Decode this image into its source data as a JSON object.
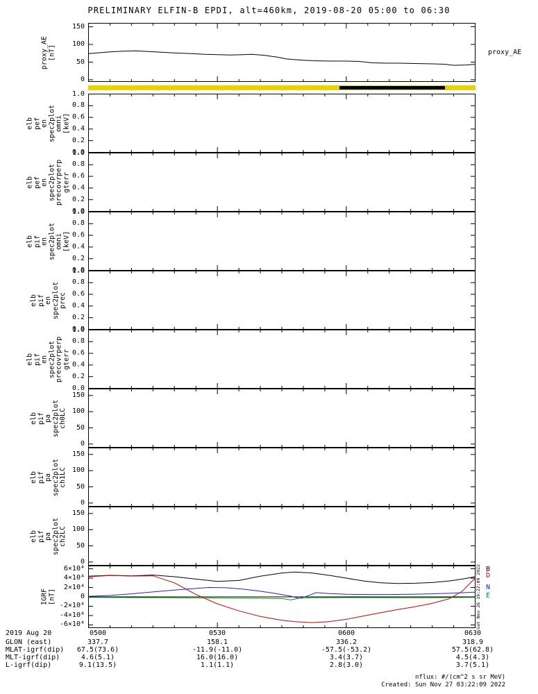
{
  "title": "PRELIMINARY ELFIN-B EPDI, alt=460km, 2019-08-20 05:00 to 06:30",
  "side_timestamp": "Sat Nov 26 19:22:09 2022",
  "colors": {
    "frame": "#000000",
    "strip_yellow": "#e8d300",
    "strip_black": "#000000",
    "line_black": "#000000",
    "line_red": "#cc0000",
    "line_blue": "#2222cc",
    "line_green": "#009900"
  },
  "x_axis": {
    "xlim_minutes": [
      0,
      90
    ],
    "major_ticks_minutes": [
      0,
      30,
      60,
      90
    ],
    "minor_step_minutes": 5,
    "labels": [
      "0500",
      "0530",
      "0600",
      "0630"
    ]
  },
  "bottom": {
    "date_label": "2019 Aug 20",
    "rows": [
      {
        "label": "GLON (east)",
        "values": [
          "337.7",
          "158.1",
          "336.2",
          "318.9"
        ]
      },
      {
        "label": "MLAT-igrf(dip)",
        "values": [
          "67.5(73.6)",
          "-11.9(-11.0)",
          "-57.5(-53.2)",
          "57.5(62.8)"
        ]
      },
      {
        "label": "MLT-igrf(dip)",
        "values": [
          "4.6(5.1)",
          "16.0(16.0)",
          "3.4(3.7)",
          "4.5(4.3)"
        ]
      },
      {
        "label": "L-igrf(dip)",
        "values": [
          "9.1(13.5)",
          "1.1(1.1)",
          "2.8(3.0)",
          "3.7(5.1)"
        ]
      }
    ],
    "nflux_note": "nflux: #/(cm^2 s sr MeV)",
    "created_note": "Created: Sun Nov 27 03:22:09 2022"
  },
  "chart_data": [
    {
      "id": "proxy-ae",
      "type": "line",
      "left_label": [
        "proxy_AE",
        "[nT]"
      ],
      "right_label": "proxy_AE",
      "ylim": [
        -5,
        160
      ],
      "yticks": [
        0,
        50,
        100,
        150
      ],
      "ytick_labels": [
        "0",
        "50",
        "100",
        "150"
      ],
      "series": [
        {
          "name": "proxy_AE",
          "color": "#000000",
          "x": [
            0,
            2,
            5,
            8,
            11,
            14,
            17,
            20,
            24,
            27,
            30,
            33,
            36,
            38,
            41,
            44,
            46,
            49,
            52,
            56,
            60,
            63,
            66,
            69,
            72,
            76,
            80,
            83,
            85,
            88,
            90
          ],
          "y": [
            74,
            76,
            79,
            81,
            82,
            80,
            78,
            76,
            74,
            72,
            71,
            70,
            71,
            72,
            69,
            64,
            59,
            56,
            54,
            53,
            53,
            52,
            48,
            47,
            47,
            46,
            45,
            44,
            41,
            42,
            44
          ]
        }
      ]
    },
    {
      "id": "mode-strip",
      "type": "strip",
      "base_color": "#e8d300",
      "segments": [
        {
          "from": 0.0,
          "to": 0.649,
          "color": "#e8d300"
        },
        {
          "from": 0.649,
          "to": 0.921,
          "color": "#000000"
        },
        {
          "from": 0.921,
          "to": 1.0,
          "color": "#e8d300"
        }
      ]
    },
    {
      "id": "elb-pef-en-spec2plot-omni",
      "type": "spec-empty",
      "left_label": [
        "elb",
        "pef",
        "en",
        "spec2plot",
        "omni",
        "[keV]"
      ],
      "ylim": [
        0,
        1
      ],
      "yticks": [
        0,
        0.2,
        0.4,
        0.6,
        0.8,
        1
      ],
      "ytick_labels": [
        "0.0",
        "0.2",
        "0.4",
        "0.6",
        "0.8",
        "1.0"
      ],
      "series": []
    },
    {
      "id": "elb-pef-en-spec2plot-precovrperp-gterr",
      "type": "spec-empty",
      "left_label": [
        "elb",
        "pef",
        "en",
        "spec2plot",
        "precovrperp",
        "gterr"
      ],
      "ylim": [
        0,
        1
      ],
      "yticks": [
        0,
        0.2,
        0.4,
        0.6,
        0.8,
        1
      ],
      "ytick_labels": [
        "0.0",
        "0.2",
        "0.4",
        "0.6",
        "0.8",
        "1.0"
      ],
      "series": []
    },
    {
      "id": "elb-pif-en-spec2plot-omni",
      "type": "spec-empty",
      "left_label": [
        "elb",
        "pif",
        "en",
        "spec2plot",
        "omni",
        "[keV]"
      ],
      "ylim": [
        0,
        1
      ],
      "yticks": [
        0,
        0.2,
        0.4,
        0.6,
        0.8,
        1
      ],
      "ytick_labels": [
        "0.0",
        "0.2",
        "0.4",
        "0.6",
        "0.8",
        "1.0"
      ],
      "series": []
    },
    {
      "id": "elb-pif-en-spec2plot-prec",
      "type": "spec-empty",
      "left_label": [
        "elb",
        "pif",
        "en",
        "spec2plot",
        "prec"
      ],
      "ylim": [
        0,
        1
      ],
      "yticks": [
        0,
        0.2,
        0.4,
        0.6,
        0.8,
        1
      ],
      "ytick_labels": [
        "0.0",
        "0.2",
        "0.4",
        "0.6",
        "0.8",
        "1.0"
      ],
      "series": []
    },
    {
      "id": "elb-pif-en-spec2plot-precovrperp-gterr",
      "type": "spec-empty",
      "left_label": [
        "elb",
        "pif",
        "en",
        "spec2plot",
        "precovrperp",
        "gterr"
      ],
      "ylim": [
        0,
        1
      ],
      "yticks": [
        0,
        0.2,
        0.4,
        0.6,
        0.8,
        1
      ],
      "ytick_labels": [
        "0.0",
        "0.2",
        "0.4",
        "0.6",
        "0.8",
        "1.0"
      ],
      "series": []
    },
    {
      "id": "elb-pif-pa-spec2plot-ch0LC",
      "type": "spec-empty",
      "left_label": [
        "elb",
        "pif",
        "pa",
        "spec2plot",
        "ch0LC"
      ],
      "ylim": [
        -10,
        170
      ],
      "yticks": [
        0,
        50,
        100,
        150
      ],
      "ytick_labels": [
        "0",
        "50",
        "100",
        "150"
      ],
      "series": []
    },
    {
      "id": "elb-pif-pa-spec2plot-ch1LC",
      "type": "spec-empty",
      "left_label": [
        "elb",
        "pif",
        "pa",
        "spec2plot",
        "ch1LC"
      ],
      "ylim": [
        -10,
        170
      ],
      "yticks": [
        0,
        50,
        100,
        150
      ],
      "ytick_labels": [
        "0",
        "50",
        "100",
        "150"
      ],
      "series": []
    },
    {
      "id": "elb-pif-pa-spec2plot-ch2LC",
      "type": "spec-empty",
      "left_label": [
        "elb",
        "pif",
        "pa",
        "spec2plot",
        "ch2LC"
      ],
      "ylim": [
        -10,
        170
      ],
      "yticks": [
        0,
        50,
        100,
        150
      ],
      "ytick_labels": [
        "0",
        "50",
        "100",
        "150"
      ],
      "series": []
    },
    {
      "id": "igrf",
      "type": "line",
      "zero_line": true,
      "left_label": [
        "IGRF",
        "[nT]"
      ],
      "right_labels": [
        {
          "text": "B",
          "color": "#000000"
        },
        {
          "text": "D",
          "color": "#cc0000"
        },
        {
          "text": "N",
          "color": "#2222cc"
        },
        {
          "text": "E",
          "color": "#009900"
        }
      ],
      "ylim": [
        -66000,
        66000
      ],
      "yticks": [
        -60000,
        -40000,
        -20000,
        0,
        20000,
        40000,
        60000
      ],
      "ytick_labels": [
        "-6×10⁴",
        "-4×10⁴",
        "-2×10⁴",
        "0",
        "2×10⁴",
        "4×10⁴",
        "6×10⁴"
      ],
      "series": [
        {
          "name": "B",
          "color": "#000000",
          "x": [
            0,
            5,
            10,
            15,
            20,
            25,
            30,
            35,
            40,
            45,
            48,
            52,
            56,
            60,
            64,
            68,
            72,
            76,
            80,
            84,
            87,
            90
          ],
          "y": [
            44000,
            46000,
            45000,
            46500,
            43000,
            38000,
            33000,
            35000,
            44000,
            51000,
            53000,
            51000,
            46000,
            40000,
            34000,
            30000,
            28500,
            29000,
            30500,
            34000,
            38000,
            43000
          ]
        },
        {
          "name": "D",
          "color": "#cc0000",
          "x": [
            0,
            5,
            10,
            15,
            20,
            25,
            30,
            35,
            40,
            45,
            48,
            52,
            56,
            60,
            64,
            68,
            72,
            76,
            80,
            84,
            87,
            90
          ],
          "y": [
            43000,
            45500,
            44500,
            45000,
            30000,
            5000,
            -15000,
            -30000,
            -42000,
            -50000,
            -53000,
            -55000,
            -53000,
            -48000,
            -41000,
            -34000,
            -27000,
            -21000,
            -14000,
            -4000,
            12000,
            40000
          ]
        },
        {
          "name": "N",
          "color": "#2222cc",
          "x": [
            0,
            5,
            10,
            15,
            20,
            25,
            28,
            32,
            36,
            40,
            44,
            47,
            49,
            51,
            53,
            56,
            60,
            65,
            70,
            75,
            80,
            85,
            90
          ],
          "y": [
            1000,
            3000,
            6500,
            10500,
            14500,
            18000,
            20000,
            19500,
            16500,
            12000,
            6500,
            1500,
            -3000,
            2000,
            9000,
            7000,
            5500,
            5000,
            5000,
            5500,
            6500,
            8000,
            10000
          ]
        },
        {
          "name": "E",
          "color": "#009900",
          "x": [
            0,
            10,
            20,
            30,
            40,
            45,
            47,
            49,
            52,
            56,
            60,
            70,
            80,
            90
          ],
          "y": [
            -1000,
            -1500,
            -2000,
            -2500,
            -3000,
            -3500,
            -6500,
            -3000,
            -2000,
            -1800,
            -1500,
            -1800,
            -1800,
            -1200
          ]
        }
      ]
    }
  ]
}
